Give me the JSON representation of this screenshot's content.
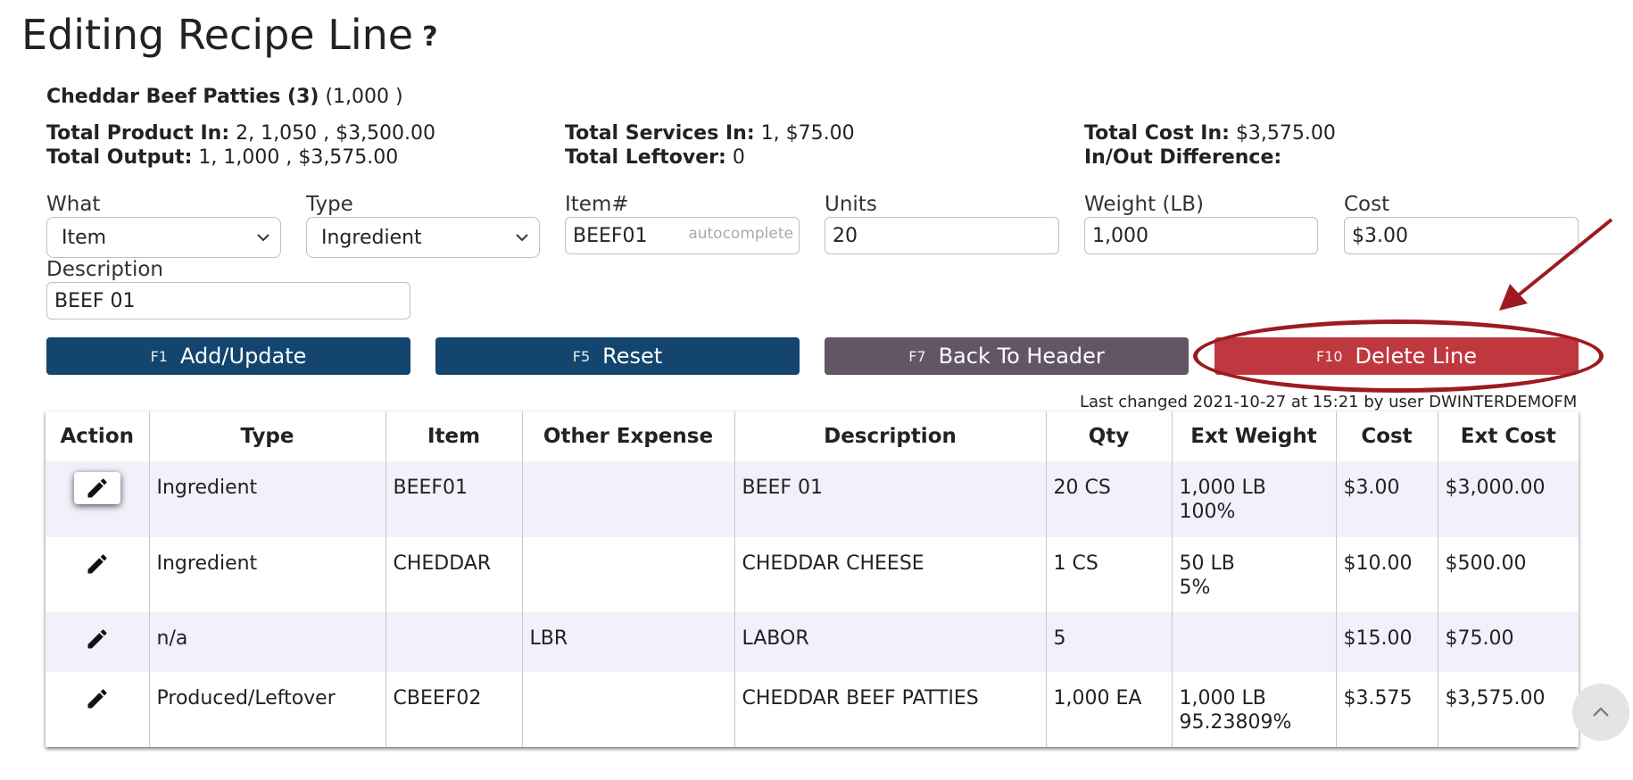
{
  "page": {
    "title": "Editing Recipe Line",
    "help_glyph": "?"
  },
  "recipe": {
    "name": "Cheddar Beef Patties (3)",
    "quantity": "(1,000 )"
  },
  "summary": {
    "total_product_in_label": "Total Product In:",
    "total_product_in_value": "2, 1,050 , $3,500.00",
    "total_output_label": "Total Output:",
    "total_output_value": "1, 1,000 , $3,575.00",
    "total_services_in_label": "Total Services In:",
    "total_services_in_value": "1, $75.00",
    "total_leftover_label": "Total Leftover:",
    "total_leftover_value": "0",
    "total_cost_in_label": "Total Cost In:",
    "total_cost_in_value": "$3,575.00",
    "in_out_difference_label": "In/Out Difference:",
    "in_out_difference_value": ""
  },
  "form": {
    "what_label": "What",
    "what_value": "Item",
    "type_label": "Type",
    "type_value": "Ingredient",
    "item_label": "Item#",
    "item_value": "BEEF01",
    "item_hint": "autocomplete",
    "units_label": "Units",
    "units_value": "20",
    "weight_label": "Weight (LB)",
    "weight_value": "1,000",
    "cost_label": "Cost",
    "cost_value": "$3.00",
    "description_label": "Description",
    "description_value": "BEEF 01"
  },
  "buttons": {
    "add_update_key": "F1",
    "add_update_label": "Add/Update",
    "reset_key": "F5",
    "reset_label": "Reset",
    "back_key": "F7",
    "back_label": "Back To Header",
    "delete_key": "F10",
    "delete_label": "Delete Line"
  },
  "last_changed": "Last changed 2021-10-27 at 15:21 by user DWINTERDEMOFM",
  "table": {
    "headers": [
      "Action",
      "Type",
      "Item",
      "Other Expense",
      "Description",
      "Qty",
      "Ext Weight",
      "Cost",
      "Ext Cost"
    ],
    "rows": [
      {
        "type": "Ingredient",
        "item": "BEEF01",
        "other_expense": "",
        "description": "BEEF 01",
        "qty": "20 CS",
        "ext_weight": "1,000 LB",
        "ext_weight_pct": "100%",
        "cost": "$3.00",
        "ext_cost": "$3,000.00",
        "selected": true
      },
      {
        "type": "Ingredient",
        "item": "CHEDDAR",
        "other_expense": "",
        "description": "CHEDDAR CHEESE",
        "qty": "1 CS",
        "ext_weight": "50 LB",
        "ext_weight_pct": "5%",
        "cost": "$10.00",
        "ext_cost": "$500.00",
        "selected": false
      },
      {
        "type": "n/a",
        "item": "",
        "other_expense": "LBR",
        "description": "LABOR",
        "qty": "5",
        "ext_weight": "",
        "ext_weight_pct": "",
        "cost": "$15.00",
        "ext_cost": "$75.00",
        "selected": false
      },
      {
        "type": "Produced/Leftover",
        "item": "CBEEF02",
        "other_expense": "",
        "description": "CHEDDAR BEEF PATTIES",
        "qty": "1,000 EA",
        "ext_weight": "1,000 LB",
        "ext_weight_pct": "95.23809%",
        "cost": "$3.575",
        "ext_cost": "$3,575.00",
        "selected": false
      }
    ]
  },
  "icons": {
    "edit": "pencil-icon",
    "scroll_top": "chevron-up-icon",
    "help": "question-mark-icon",
    "dropdown": "chevron-down-icon"
  },
  "colors": {
    "primary_button": "#13456e",
    "secondary_button": "#625566",
    "danger_button": "#c0383f",
    "annotation": "#9c1b22",
    "row_stripe": "#f0f1fb"
  }
}
